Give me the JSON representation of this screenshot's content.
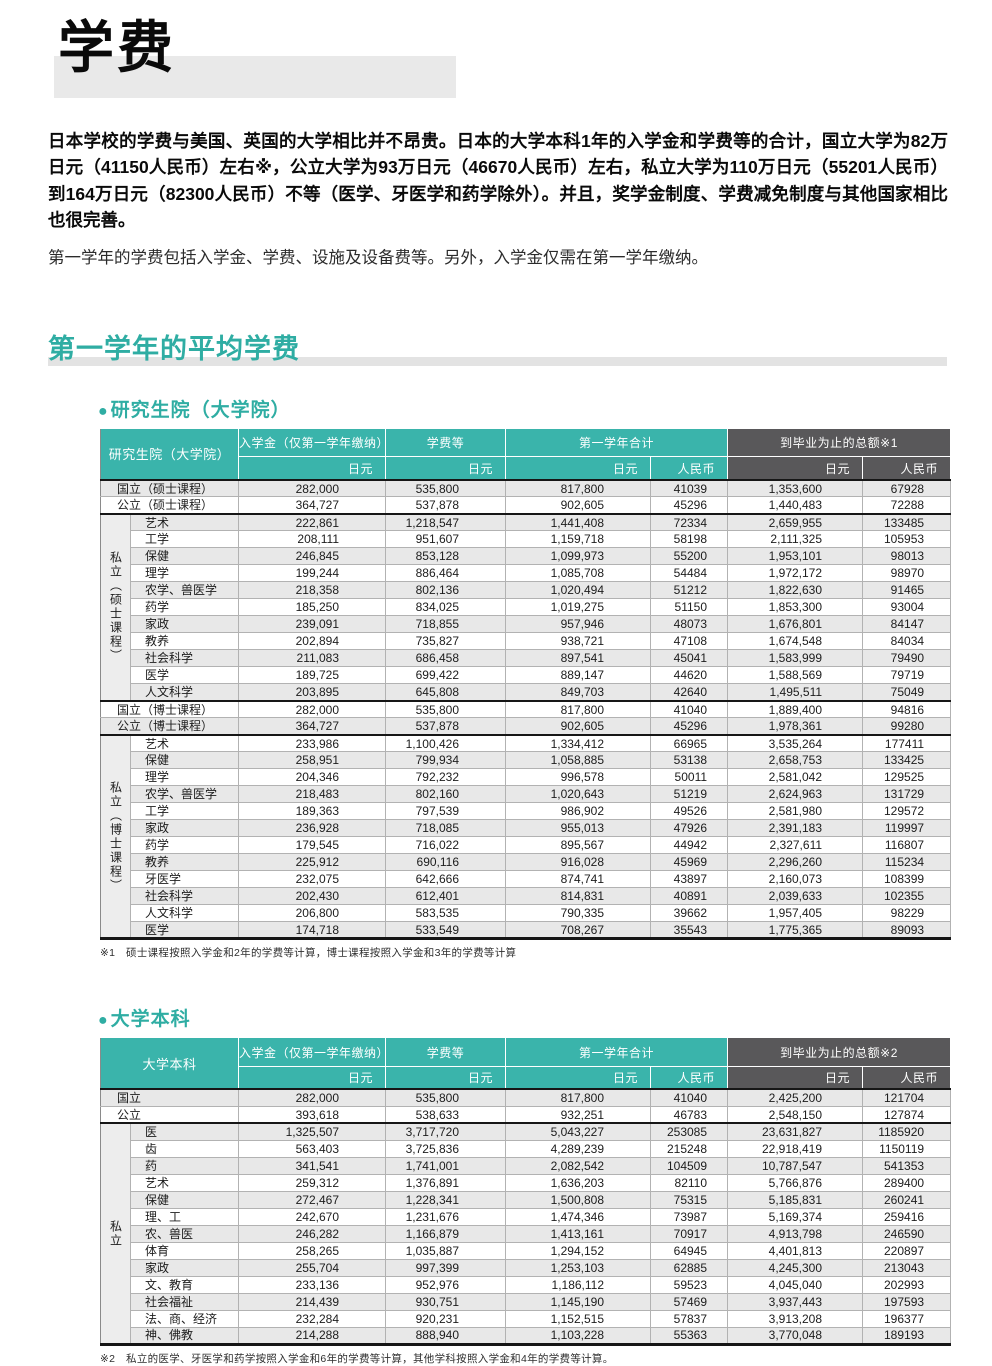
{
  "colors": {
    "accent_teal": "#3ab4ab",
    "header_dark_gray": "#59585a",
    "stripe_gray": "#e8e8e8"
  },
  "page": {
    "title": "学费",
    "intro_p1": "日本学校的学费与美国、英国的大学相比并不昂贵。日本的大学本科1年的入学金和学费等的合计，国立大学为82万日元（41150人民币）左右※，公立大学为93万日元（46670人民币）左右，私立大学为110万日元（55201人民币）到164万日元（82300人民币）不等（医学、牙医学和药学除外）。并且，奖学金制度、学费减免制度与其他国家相比也很完善。",
    "intro_p2": "第一学年的学费包括入学金、学费、设施及设备费等。另外，入学金仅需在第一学年缴纳。",
    "section_title": "第一学年的平均学费",
    "bullet": "●"
  },
  "tables": [
    {
      "heading": "研究生院（大学院）",
      "header": {
        "name": "研究生院（大学院）",
        "c_nyugaku": "入学金（仅第一学年缴纳）",
        "c_fee": "学费等",
        "c_first_year": "第一学年合计",
        "c_graduation": "到毕业为止的总额※1",
        "yen": "日元",
        "rmb": "人民币"
      },
      "footnote": "※1　硕士课程按照入学金和2年的学费等计算，博士课程按照入学金和3年的学费等计算",
      "rows": [
        {
          "label": "国立（硕士课程）",
          "wide": true,
          "values": [
            "282,000",
            "535,800",
            "817,800",
            "41039",
            "1,353,600",
            "67928"
          ]
        },
        {
          "label": "公立（硕士课程）",
          "wide": true,
          "values": [
            "364,727",
            "537,878",
            "902,605",
            "45296",
            "1,440,483",
            "72288"
          ]
        },
        {
          "group": "私立（硕士课程）",
          "span": 11,
          "sep": true,
          "label": "艺术",
          "values": [
            "222,861",
            "1,218,547",
            "1,441,408",
            "72334",
            "2,659,955",
            "133485"
          ]
        },
        {
          "label": "工学",
          "values": [
            "208,111",
            "951,607",
            "1,159,718",
            "58198",
            "2,111,325",
            "105953"
          ]
        },
        {
          "label": "保健",
          "values": [
            "246,845",
            "853,128",
            "1,099,973",
            "55200",
            "1,953,101",
            "98013"
          ]
        },
        {
          "label": "理学",
          "values": [
            "199,244",
            "886,464",
            "1,085,708",
            "54484",
            "1,972,172",
            "98970"
          ]
        },
        {
          "label": "农学、兽医学",
          "values": [
            "218,358",
            "802,136",
            "1,020,494",
            "51212",
            "1,822,630",
            "91465"
          ]
        },
        {
          "label": "药学",
          "values": [
            "185,250",
            "834,025",
            "1,019,275",
            "51150",
            "1,853,300",
            "93004"
          ]
        },
        {
          "label": "家政",
          "values": [
            "239,091",
            "718,855",
            "957,946",
            "48073",
            "1,676,801",
            "84147"
          ]
        },
        {
          "label": "教养",
          "values": [
            "202,894",
            "735,827",
            "938,721",
            "47108",
            "1,674,548",
            "84034"
          ]
        },
        {
          "label": "社会科学",
          "values": [
            "211,083",
            "686,458",
            "897,541",
            "45041",
            "1,583,999",
            "79490"
          ]
        },
        {
          "label": "医学",
          "values": [
            "189,725",
            "699,422",
            "889,147",
            "44620",
            "1,588,569",
            "79719"
          ]
        },
        {
          "label": "人文科学",
          "values": [
            "203,895",
            "645,808",
            "849,703",
            "42640",
            "1,495,511",
            "75049"
          ]
        },
        {
          "label": "国立（博士课程）",
          "wide": true,
          "sep": true,
          "values": [
            "282,000",
            "535,800",
            "817,800",
            "41040",
            "1,889,400",
            "94816"
          ]
        },
        {
          "label": "公立（博士课程）",
          "wide": true,
          "values": [
            "364,727",
            "537,878",
            "902,605",
            "45296",
            "1,978,361",
            "99280"
          ]
        },
        {
          "group": "私立（博士课程）",
          "span": 12,
          "sep": true,
          "label": "艺术",
          "values": [
            "233,986",
            "1,100,426",
            "1,334,412",
            "66965",
            "3,535,264",
            "177411"
          ]
        },
        {
          "label": "保健",
          "values": [
            "258,951",
            "799,934",
            "1,058,885",
            "53138",
            "2,658,753",
            "133425"
          ]
        },
        {
          "label": "理学",
          "values": [
            "204,346",
            "792,232",
            "996,578",
            "50011",
            "2,581,042",
            "129525"
          ]
        },
        {
          "label": "农学、兽医学",
          "values": [
            "218,483",
            "802,160",
            "1,020,643",
            "51219",
            "2,624,963",
            "131729"
          ]
        },
        {
          "label": "工学",
          "values": [
            "189,363",
            "797,539",
            "986,902",
            "49526",
            "2,581,980",
            "129572"
          ]
        },
        {
          "label": "家政",
          "values": [
            "236,928",
            "718,085",
            "955,013",
            "47926",
            "2,391,183",
            "119997"
          ]
        },
        {
          "label": "药学",
          "values": [
            "179,545",
            "716,022",
            "895,567",
            "44942",
            "2,327,611",
            "116807"
          ]
        },
        {
          "label": "教养",
          "values": [
            "225,912",
            "690,116",
            "916,028",
            "45969",
            "2,296,260",
            "115234"
          ]
        },
        {
          "label": "牙医学",
          "values": [
            "232,075",
            "642,666",
            "874,741",
            "43897",
            "2,160,073",
            "108399"
          ]
        },
        {
          "label": "社会科学",
          "values": [
            "202,430",
            "612,401",
            "814,831",
            "40891",
            "2,039,633",
            "102355"
          ]
        },
        {
          "label": "人文科学",
          "values": [
            "206,800",
            "583,535",
            "790,335",
            "39662",
            "1,957,405",
            "98229"
          ]
        },
        {
          "label": "医学",
          "values": [
            "174,718",
            "533,549",
            "708,267",
            "35543",
            "1,775,365",
            "89093"
          ]
        }
      ]
    },
    {
      "heading": "大学本科",
      "header": {
        "name": "大学本科",
        "c_nyugaku": "入学金（仅第一学年缴纳）",
        "c_fee": "学费等",
        "c_first_year": "第一学年合计",
        "c_graduation": "到毕业为止的总额※2",
        "yen": "日元",
        "rmb": "人民币"
      },
      "footnote": "※2　私立的医学、牙医学和药学按照入学金和6年的学费等计算，其他学科按照入学金和4年的学费等计算。",
      "rows": [
        {
          "label": "国立",
          "wide": true,
          "values": [
            "282,000",
            "535,800",
            "817,800",
            "41040",
            "2,425,200",
            "121704"
          ]
        },
        {
          "label": "公立",
          "wide": true,
          "values": [
            "393,618",
            "538,633",
            "932,251",
            "46783",
            "2,548,150",
            "127874"
          ]
        },
        {
          "group": "私立",
          "span": 13,
          "sep": true,
          "label": "医",
          "values": [
            "1,325,507",
            "3,717,720",
            "5,043,227",
            "253085",
            "23,631,827",
            "1185920"
          ]
        },
        {
          "label": "齿",
          "values": [
            "563,403",
            "3,725,836",
            "4,289,239",
            "215248",
            "22,918,419",
            "1150119"
          ]
        },
        {
          "label": "药",
          "values": [
            "341,541",
            "1,741,001",
            "2,082,542",
            "104509",
            "10,787,547",
            "541353"
          ]
        },
        {
          "label": "艺术",
          "values": [
            "259,312",
            "1,376,891",
            "1,636,203",
            "82110",
            "5,766,876",
            "289400"
          ]
        },
        {
          "label": "保健",
          "values": [
            "272,467",
            "1,228,341",
            "1,500,808",
            "75315",
            "5,185,831",
            "260241"
          ]
        },
        {
          "label": "理、工",
          "values": [
            "242,670",
            "1,231,676",
            "1,474,346",
            "73987",
            "5,169,374",
            "259416"
          ]
        },
        {
          "label": "农、兽医",
          "values": [
            "246,282",
            "1,166,879",
            "1,413,161",
            "70917",
            "4,913,798",
            "246590"
          ]
        },
        {
          "label": "体育",
          "values": [
            "258,265",
            "1,035,887",
            "1,294,152",
            "64945",
            "4,401,813",
            "220897"
          ]
        },
        {
          "label": "家政",
          "values": [
            "255,704",
            "997,399",
            "1,253,103",
            "62885",
            "4,245,300",
            "213043"
          ]
        },
        {
          "label": "文、教育",
          "values": [
            "233,136",
            "952,976",
            "1,186,112",
            "59523",
            "4,045,040",
            "202993"
          ]
        },
        {
          "label": "社会福祉",
          "values": [
            "214,439",
            "930,751",
            "1,145,190",
            "57469",
            "3,937,443",
            "197593"
          ]
        },
        {
          "label": "法、商、经济",
          "values": [
            "232,284",
            "920,231",
            "1,152,515",
            "57837",
            "3,913,208",
            "196377"
          ]
        },
        {
          "label": "神、佛教",
          "values": [
            "214,288",
            "888,940",
            "1,103,228",
            "55363",
            "3,770,048",
            "189193"
          ]
        }
      ]
    }
  ]
}
